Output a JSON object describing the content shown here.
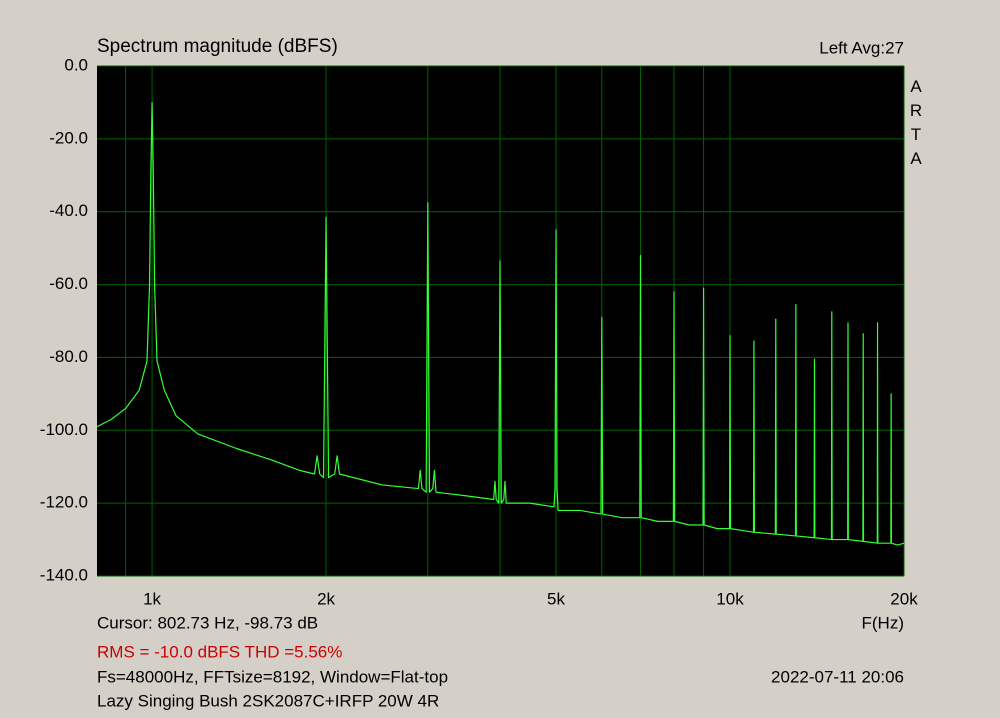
{
  "chart_data": {
    "type": "line",
    "title": "Spectrum magnitude (dBFS)",
    "channel_label": "Left  Avg:27",
    "brand": "ARTA",
    "x_label": "F(Hz)",
    "cursor_text": "Cursor: 802.73 Hz, -98.73 dB",
    "rms_text": "RMS =  -10.0 dBFS  THD =5.56%",
    "settings_text": "Fs=48000Hz, FFTsize=8192, Window=Flat-top",
    "date_text": "2022-07-11  20:06",
    "device_text": "Lazy Singing Bush 2SK2087C+IRFP 20W 4R",
    "log_x": true,
    "grid": true,
    "xlim": [
      803,
      20000
    ],
    "ylim": [
      -140,
      0
    ],
    "xticks": [
      {
        "value": 1000,
        "label": "1k"
      },
      {
        "value": 2000,
        "label": "2k"
      },
      {
        "value": 5000,
        "label": "5k"
      },
      {
        "value": 10000,
        "label": "10k"
      },
      {
        "value": 20000,
        "label": "20k"
      }
    ],
    "x_minor_grid": [
      900,
      3000,
      4000,
      6000,
      7000,
      8000,
      9000
    ],
    "yticks": [
      {
        "value": 0,
        "label": "0.0"
      },
      {
        "value": -20,
        "label": "-20.0"
      },
      {
        "value": -40,
        "label": "-40.0"
      },
      {
        "value": -60,
        "label": "-60.0"
      },
      {
        "value": -80,
        "label": "-80.0"
      },
      {
        "value": -100,
        "label": "-100.0"
      },
      {
        "value": -120,
        "label": "-120.0"
      },
      {
        "value": -140,
        "label": "-140.0"
      }
    ],
    "x": [
      803,
      850,
      900,
      950,
      980,
      990,
      995,
      1000,
      1005,
      1010,
      1020,
      1050,
      1100,
      1200,
      1400,
      1600,
      1800,
      1910,
      1930,
      1950,
      1980,
      2000,
      2020,
      2070,
      2090,
      2110,
      2500,
      2890,
      2910,
      2930,
      2980,
      3000,
      3020,
      3060,
      3080,
      3100,
      3500,
      3900,
      3920,
      3940,
      3980,
      4000,
      4020,
      4060,
      4080,
      4100,
      4500,
      4960,
      4980,
      5000,
      5020,
      5040,
      5500,
      5980,
      6000,
      6020,
      6500,
      6980,
      7000,
      7020,
      7500,
      7980,
      8000,
      8020,
      8500,
      8980,
      9000,
      9020,
      9500,
      9980,
      10000,
      10020,
      10500,
      10980,
      11000,
      11020,
      11980,
      12000,
      12020,
      12980,
      13000,
      13020,
      13980,
      14000,
      14020,
      14980,
      15000,
      15020,
      15980,
      16000,
      16020,
      16980,
      17000,
      17020,
      17980,
      18000,
      18020,
      18980,
      19000,
      19020,
      19500,
      20000
    ],
    "series": [
      {
        "name": "Left",
        "color": "#33ff33",
        "values": [
          -99,
          -97,
          -94,
          -89,
          -81,
          -60,
          -30,
          -10,
          -30,
          -60,
          -81,
          -89,
          -96,
          -101,
          -105,
          -108,
          -111,
          -112,
          -107,
          -112,
          -113,
          -41.5,
          -113,
          -112,
          -107,
          -112,
          -115,
          -116,
          -111,
          -116,
          -117,
          -37.5,
          -117,
          -116,
          -111,
          -117,
          -118,
          -119,
          -114,
          -119,
          -120,
          -53.5,
          -120,
          -119,
          -114,
          -120,
          -120,
          -121,
          -116,
          -45,
          -116,
          -122,
          -122,
          -123,
          -69,
          -123,
          -124,
          -124,
          -52,
          -124,
          -125,
          -125,
          -62,
          -125,
          -126,
          -126,
          -61,
          -126,
          -127,
          -127,
          -74,
          -127,
          -127.5,
          -128,
          -75.5,
          -128,
          -128.5,
          -69.5,
          -128.5,
          -129,
          -65.5,
          -129,
          -129.5,
          -80.5,
          -129.5,
          -130,
          -67.5,
          -130,
          -130,
          -70.5,
          -130,
          -130.5,
          -73.5,
          -130.5,
          -131,
          -70.5,
          -131,
          -131,
          -90,
          -131,
          -131.5,
          -131
        ]
      }
    ]
  }
}
